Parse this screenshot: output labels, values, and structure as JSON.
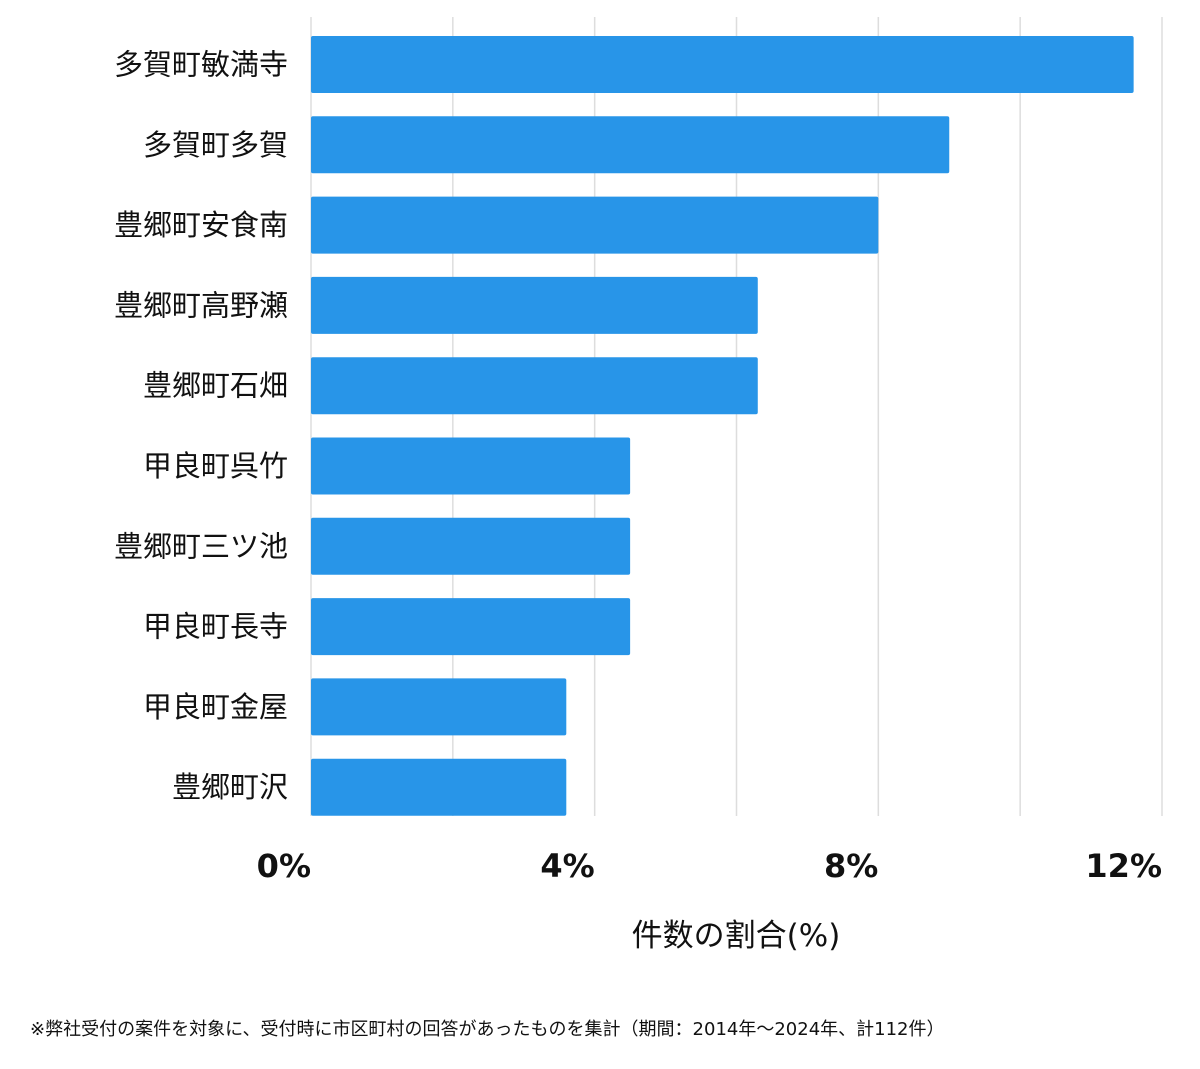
{
  "chart_data": {
    "type": "bar",
    "orientation": "horizontal",
    "categories": [
      "多賀町敏満寺",
      "多賀町多賀",
      "豊郷町安食南",
      "豊郷町高野瀬",
      "豊郷町石畑",
      "甲良町呉竹",
      "豊郷町三ツ池",
      "甲良町長寺",
      "甲良町金屋",
      "豊郷町沢"
    ],
    "values": [
      11.6,
      9.0,
      8.0,
      6.3,
      6.3,
      4.5,
      4.5,
      4.5,
      3.6,
      3.6
    ],
    "xticks": [
      0,
      4,
      8,
      12
    ],
    "tick_labels": [
      "0%",
      "4%",
      "8%",
      "12%"
    ],
    "gridlines": [
      0,
      2,
      4,
      6,
      8,
      10,
      12
    ],
    "xlim": [
      0,
      12
    ],
    "xlabel": "件数の割合(%)",
    "grid": true,
    "legend": "none",
    "bar_color": "#2895e8"
  },
  "footnote": "※弊社受付の案件を対象に、受付時に市区町村の回答があったものを集計（期間：2014年～2024年、計112件）"
}
